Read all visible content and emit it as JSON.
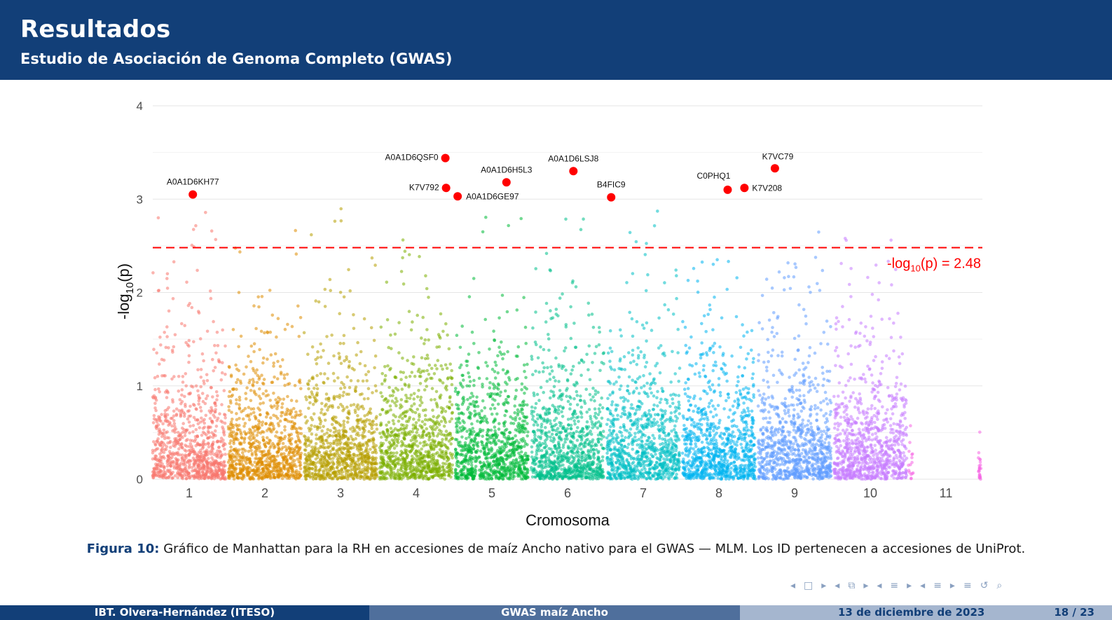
{
  "header": {
    "title": "Resultados",
    "subtitle": "Estudio de Asociación de Genoma Completo (GWAS)",
    "background_color": "#123f78"
  },
  "chart_data": {
    "type": "scatter",
    "xlabel": "Cromosoma",
    "ylabel": "-log10(p)",
    "ylim": [
      0,
      4
    ],
    "yticks": [
      "0",
      "1",
      "2",
      "3",
      "4"
    ],
    "grid": true,
    "categories": [
      "1",
      "2",
      "3",
      "4",
      "5",
      "6",
      "7",
      "8",
      "9",
      "10",
      "11"
    ],
    "chromosome_colors": [
      "#f8766d",
      "#de8c00",
      "#b79f00",
      "#7cae00",
      "#00ba38",
      "#00c08b",
      "#00bfc4",
      "#00b4f0",
      "#619cff",
      "#c77cff",
      "#f564e3"
    ],
    "threshold": {
      "value": 2.48,
      "label_prefix": "-log",
      "label_sub": "10",
      "label_suffix": "(p) = 2.48",
      "color": "#ff0000"
    },
    "significant_snps": [
      {
        "id": "A0A1D6KH77",
        "chromosome": 1,
        "pos": 0.55,
        "y": 3.05
      },
      {
        "id": "A0A1D6QSF0",
        "chromosome": 4,
        "pos": 0.9,
        "y": 3.44
      },
      {
        "id": "K7V792",
        "chromosome": 4,
        "pos": 0.91,
        "y": 3.12
      },
      {
        "id": "A0A1D6GE97",
        "chromosome": 5,
        "pos": 0.03,
        "y": 3.03
      },
      {
        "id": "A0A1D6H5L3",
        "chromosome": 5,
        "pos": 0.7,
        "y": 3.18
      },
      {
        "id": "A0A1D6LSJ8",
        "chromosome": 6,
        "pos": 0.58,
        "y": 3.3
      },
      {
        "id": "B4FIC9",
        "chromosome": 7,
        "pos": 0.06,
        "y": 3.02
      },
      {
        "id": "C0PHQ1",
        "chromosome": 8,
        "pos": 0.62,
        "y": 3.1
      },
      {
        "id": "K7V208",
        "chromosome": 8,
        "pos": 0.85,
        "y": 3.12
      },
      {
        "id": "K7VC79",
        "chromosome": 9,
        "pos": 0.23,
        "y": 3.33
      }
    ],
    "significant_color": "#ff0000"
  },
  "caption": {
    "label": "Figura 10:",
    "text": " Gráfico de Manhattan para la RH en accesiones de maíz Ancho nativo para el GWAS — MLM. Los ID pertenecen a accesiones de UniProt."
  },
  "nav": {
    "icons": [
      "◂",
      "□",
      "▸",
      "◂",
      "⧉",
      "▸",
      "◂",
      "≡",
      "▸",
      "◂",
      "≡",
      "▸",
      "≡",
      "↺",
      "⌕"
    ]
  },
  "footer": {
    "author": "IBT. Olvera-Hernández (ITESO)",
    "short_title": "GWAS maíz Ancho",
    "date": "13 de diciembre de 2023",
    "page": "18 / 23"
  }
}
